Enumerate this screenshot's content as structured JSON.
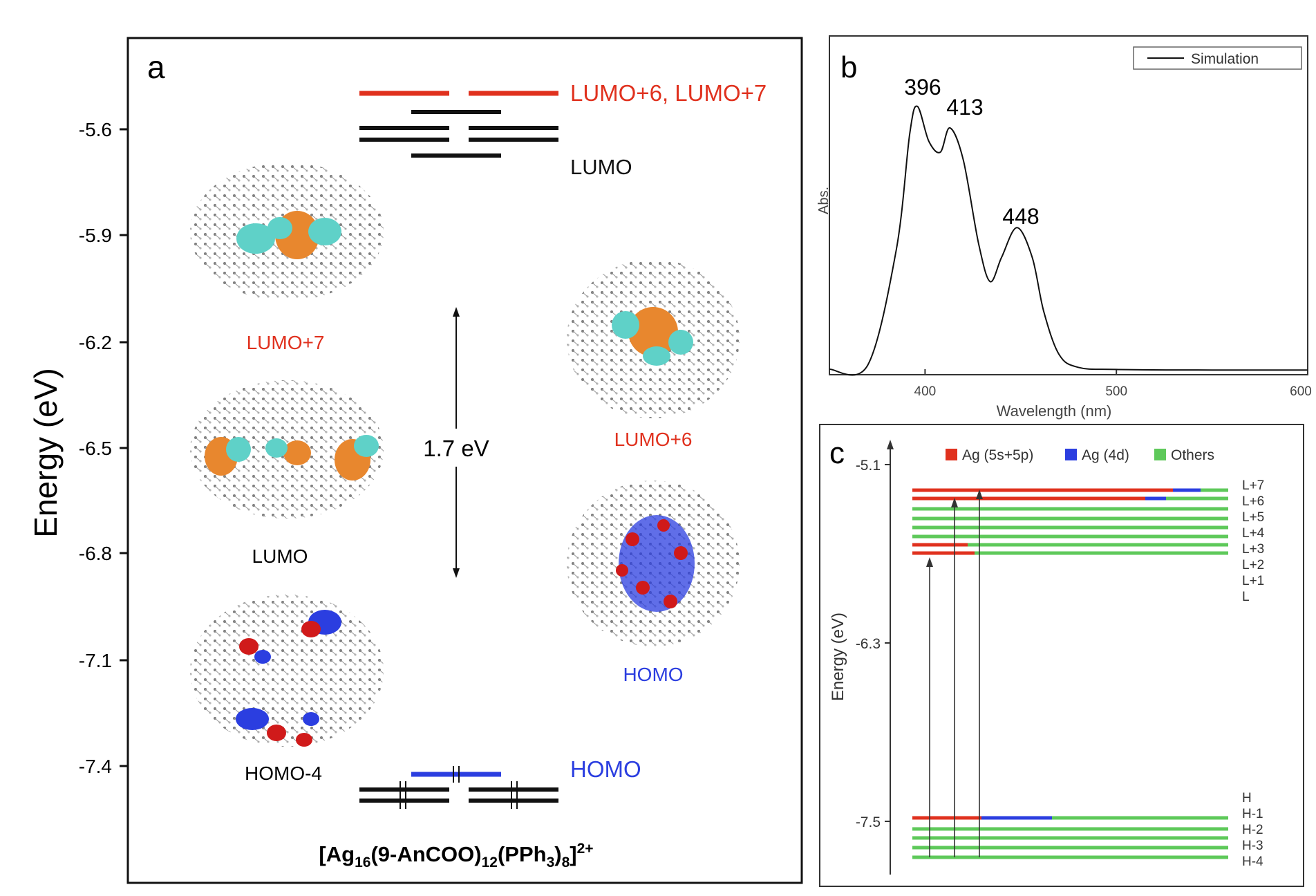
{
  "colors": {
    "red": "#e0311e",
    "blue": "#2b3ee0",
    "green": "#5ec95a",
    "black": "#111111",
    "orange": "#e8872e",
    "cyan": "#5fd1c8"
  },
  "panel_a": {
    "label": "a",
    "axis_title": "Energy (eV)",
    "ticks": [
      "-5.6",
      "-5.9",
      "-6.2",
      "-6.5",
      "-6.8",
      "-7.1",
      "-7.4"
    ],
    "level_labels": {
      "lumo67": "LUMO+6, LUMO+7",
      "lumo": "LUMO",
      "homo": "HOMO"
    },
    "gap": "1.7 eV",
    "orbital_labels": {
      "lumo7": "LUMO+7",
      "lumo": "LUMO",
      "homo4": "HOMO-4",
      "lumo6": "LUMO+6",
      "homo": "HOMO"
    },
    "formula": {
      "a": "[Ag",
      "s1": "16",
      "b": "(9-AnCOO)",
      "s2": "12",
      "c": "(PPh",
      "s3": "3",
      "d": ")",
      "s4": "8",
      "e": "]",
      "sup": "2+"
    }
  },
  "chart_data": [
    {
      "type": "line",
      "panel": "b",
      "title": "",
      "xlabel": "Wavelength (nm)",
      "ylabel": "Abs.",
      "xlim": [
        350,
        600
      ],
      "x_ticks": [
        "400",
        "500",
        "600"
      ],
      "legend": [
        "Simulation"
      ],
      "series": [
        {
          "name": "Simulation",
          "x": [
            350,
            370,
            385,
            392,
            396,
            402,
            408,
            413,
            420,
            428,
            434,
            440,
            448,
            456,
            462,
            470,
            480,
            500,
            550,
            600
          ],
          "y": [
            0.005,
            0.02,
            0.45,
            0.88,
            0.98,
            0.85,
            0.81,
            0.9,
            0.78,
            0.47,
            0.33,
            0.42,
            0.53,
            0.42,
            0.22,
            0.06,
            0.012,
            0.004,
            0.002,
            0.002
          ]
        }
      ],
      "annotations": [
        "396",
        "413",
        "448"
      ]
    },
    {
      "type": "level diagram",
      "panel": "c",
      "ylabel": "Energy (eV)",
      "y_ticks": [
        "-5.1",
        "-6.3",
        "-7.5"
      ],
      "legend": [
        "Ag (5s+5p)",
        "Ag (4d)",
        "Others"
      ],
      "upper_levels": [
        "L+7",
        "L+6",
        "L+5",
        "L+4",
        "L+3",
        "L+2",
        "L+1",
        "L"
      ],
      "lower_levels": [
        "H",
        "H-1",
        "H-2",
        "H-3",
        "H-4"
      ]
    }
  ]
}
